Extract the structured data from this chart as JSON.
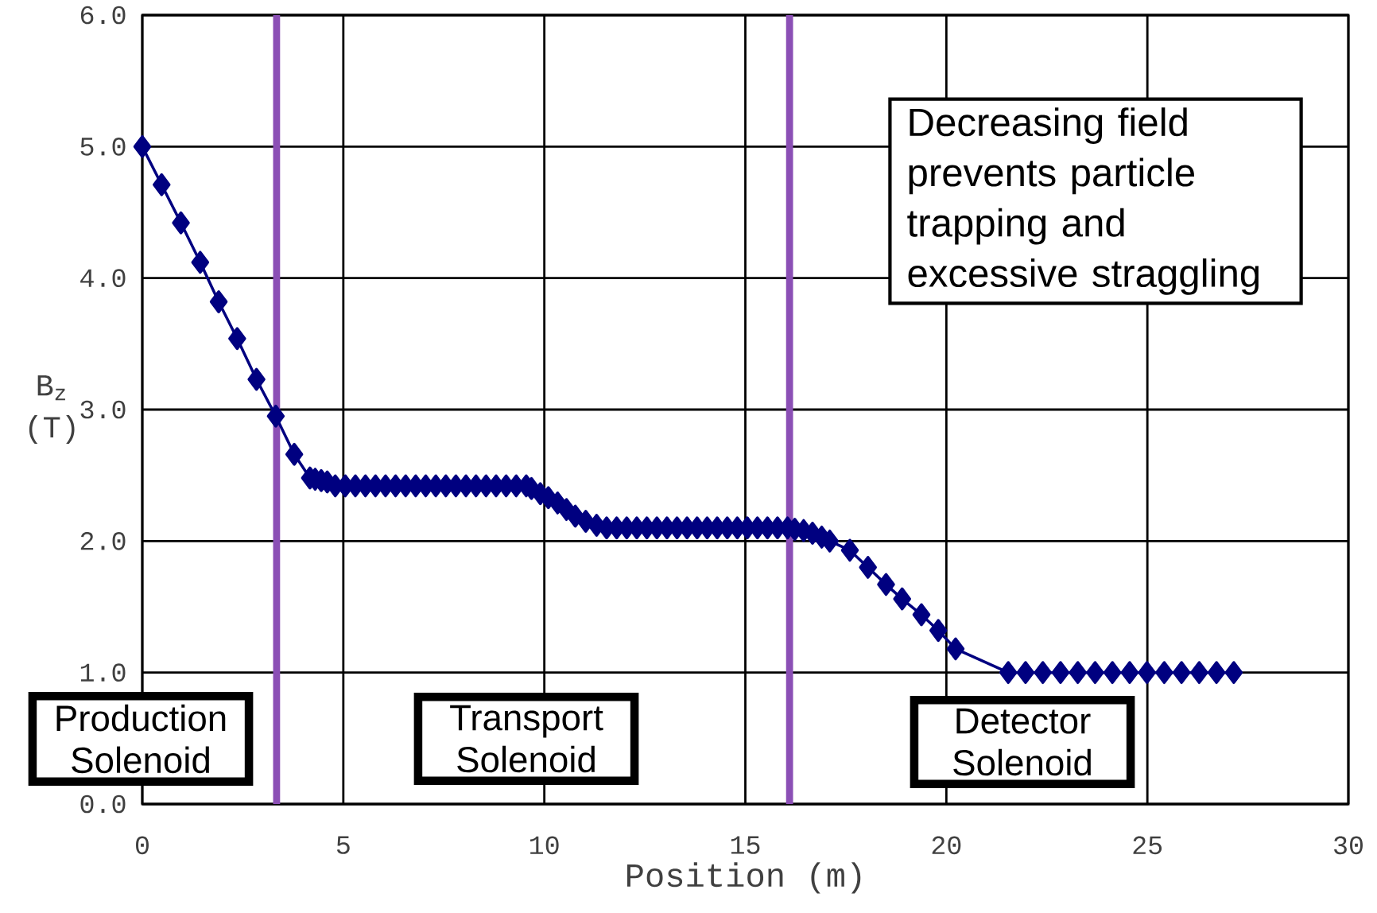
{
  "chart_data": {
    "type": "line",
    "xlabel": "Position (m)",
    "ylabel": "B$_{z}$ (T)",
    "xlim": [
      0,
      30
    ],
    "ylim": [
      0,
      6
    ],
    "xticks": [
      0,
      5,
      10,
      15,
      20,
      25,
      30
    ],
    "yticks": [
      {
        "value": 0,
        "label": "0.0"
      },
      {
        "value": 1,
        "label": "1.0"
      },
      {
        "value": 2,
        "label": "2.0"
      },
      {
        "value": 3,
        "label": "3.0"
      },
      {
        "value": 4,
        "label": "4.0"
      },
      {
        "value": 5,
        "label": "5.0"
      },
      {
        "value": 6,
        "label": "6.0"
      }
    ],
    "grid": true,
    "marker": "diamond",
    "line_style": "solid",
    "series": [
      {
        "color": "#000080",
        "x": [
          0,
          0.48,
          0.96,
          1.44,
          1.9,
          2.36,
          2.84,
          3.32,
          3.78,
          4.17,
          4.3,
          4.45,
          4.6,
          4.8,
          5.05,
          5.3,
          5.55,
          5.8,
          6.05,
          6.3,
          6.55,
          6.8,
          7.05,
          7.3,
          7.55,
          7.8,
          8.05,
          8.3,
          8.55,
          8.8,
          9.05,
          9.3,
          9.55,
          9.68,
          9.9,
          10.1,
          10.33,
          10.55,
          10.77,
          11.03,
          11.3,
          11.55,
          11.8,
          12.05,
          12.3,
          12.55,
          12.8,
          13.05,
          13.3,
          13.55,
          13.8,
          14.05,
          14.3,
          14.55,
          14.8,
          15.05,
          15.3,
          15.55,
          15.8,
          16.05,
          16.23,
          16.45,
          16.67,
          16.9,
          17.1,
          17.6,
          18.05,
          18.5,
          18.9,
          19.38,
          19.8,
          20.23,
          21.54,
          21.97,
          22.4,
          22.84,
          23.27,
          23.7,
          24.13,
          24.56,
          24.99,
          25.42,
          25.85,
          26.29,
          26.72,
          27.15
        ],
        "values": [
          5.0,
          4.71,
          4.42,
          4.12,
          3.82,
          3.54,
          3.23,
          2.95,
          2.66,
          2.48,
          2.47,
          2.46,
          2.45,
          2.42,
          2.42,
          2.42,
          2.42,
          2.42,
          2.42,
          2.42,
          2.42,
          2.42,
          2.42,
          2.42,
          2.42,
          2.42,
          2.42,
          2.42,
          2.42,
          2.42,
          2.42,
          2.42,
          2.42,
          2.4,
          2.36,
          2.33,
          2.29,
          2.24,
          2.19,
          2.15,
          2.12,
          2.1,
          2.1,
          2.1,
          2.1,
          2.1,
          2.1,
          2.1,
          2.1,
          2.1,
          2.1,
          2.1,
          2.1,
          2.1,
          2.1,
          2.1,
          2.1,
          2.1,
          2.1,
          2.1,
          2.09,
          2.08,
          2.06,
          2.03,
          2.0,
          1.93,
          1.8,
          1.67,
          1.56,
          1.44,
          1.32,
          1.18,
          1.0,
          1.0,
          1.0,
          1.0,
          1.0,
          1.0,
          1.0,
          1.0,
          1.0,
          1.0,
          1.0,
          1.0,
          1.0,
          1.0
        ]
      }
    ],
    "ref_lines": [
      {
        "axis": "x",
        "value": 3.34,
        "color": "#8b4fb5"
      },
      {
        "axis": "x",
        "value": 16.1,
        "color": "#8b4fb5"
      }
    ],
    "annotations": [
      "Decreasing field prevents particle trapping and excessive straggling",
      "Production Solenoid",
      "Transport Solenoid",
      "Detector Solenoid"
    ]
  }
}
